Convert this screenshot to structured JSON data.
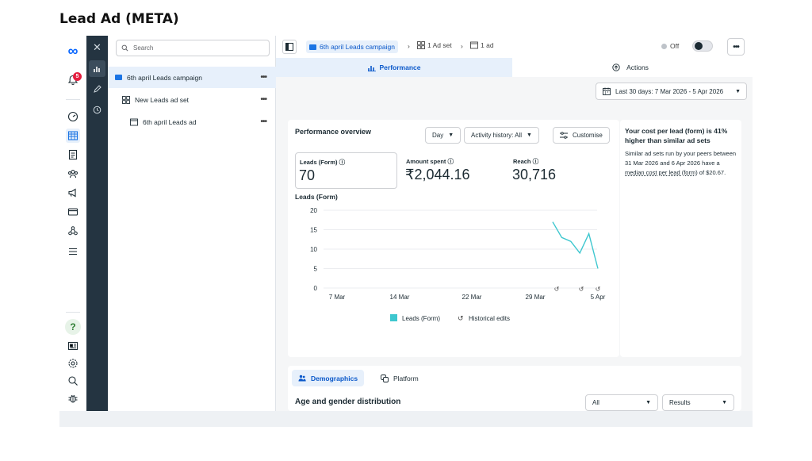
{
  "page_heading": "Lead Ad (META)",
  "rail": {
    "notification_count": "5",
    "help": "?"
  },
  "tree": {
    "search_placeholder": "Search",
    "items": [
      {
        "label": "6th april Leads campaign"
      },
      {
        "label": "New Leads ad set"
      },
      {
        "label": "6th april Leads ad"
      }
    ],
    "more": "•••"
  },
  "topbar": {
    "campaign": "6th april Leads campaign",
    "adset": "1 Ad set",
    "ad": "1 ad",
    "status": "Off",
    "more": "•••"
  },
  "tabs": {
    "performance": "Performance",
    "actions": "Actions"
  },
  "date_range": "Last 30 days: 7 Mar 2026 - 5 Apr 2026",
  "overview": {
    "title": "Performance overview",
    "day": "Day",
    "activity": "Activity history: All",
    "customise": "Customise",
    "metrics": [
      {
        "label": "Leads (Form)",
        "value": "70"
      },
      {
        "label": "Amount spent",
        "value": "₹2,044.16"
      },
      {
        "label": "Reach",
        "value": "30,716"
      }
    ],
    "chart_label": "Leads (Form)",
    "legend_series": "Leads (Form)",
    "legend_edits": "Historical edits"
  },
  "chart_data": {
    "type": "line",
    "x": [
      "31 Mar",
      "1 Apr",
      "2 Apr",
      "3 Apr",
      "4 Apr",
      "5 Apr"
    ],
    "series": [
      {
        "name": "Leads (Form)",
        "values": [
          17,
          13,
          12,
          9,
          14,
          5
        ]
      }
    ],
    "x_ticks": [
      "7 Mar",
      "14 Mar",
      "22 Mar",
      "29 Mar",
      "5 Apr"
    ],
    "y_ticks": [
      "0",
      "5",
      "10",
      "15",
      "20"
    ],
    "ylim": [
      0,
      20
    ],
    "color": "#3ec7cf",
    "grid": true,
    "legend": "bottom"
  },
  "insight": {
    "title": "Your cost per lead (form) is 41% higher than similar ad sets",
    "body_pre": "Similar ad sets run by your peers between 31 Mar 2026 and 6 Apr 2026 have a ",
    "body_link": "median cost per lead (form)",
    "body_post": " of $20.67."
  },
  "bottom": {
    "demographics": "Demographics",
    "platform": "Platform",
    "age_title": "Age and gender distribution",
    "filter_all": "All",
    "filter_results": "Results"
  }
}
